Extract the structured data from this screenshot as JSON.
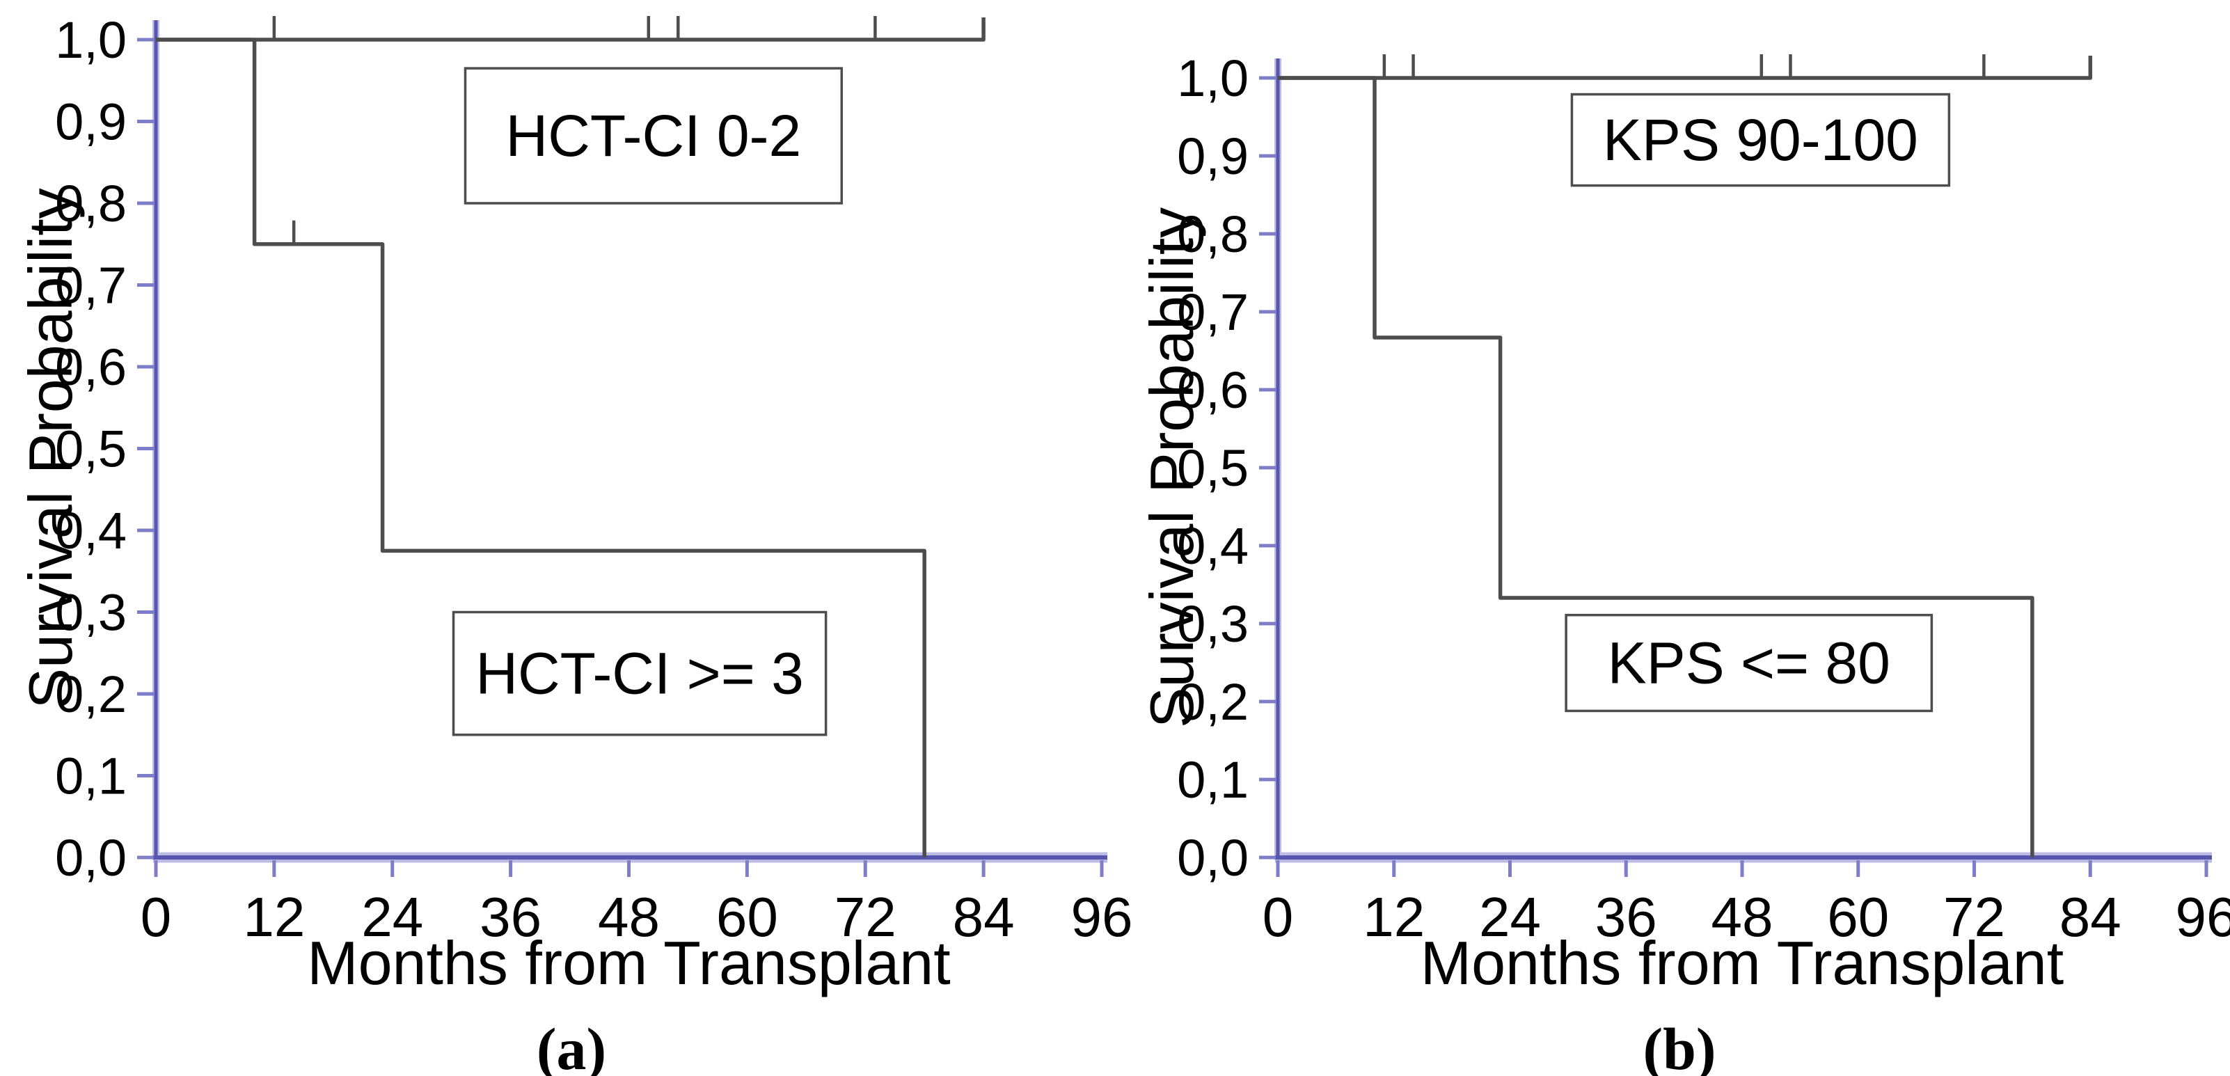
{
  "figure": {
    "background": "#ffffff",
    "description": "Two Kaplan-Meier overall survival plots, months from transplant"
  },
  "colors": {
    "axis": "#5656ae",
    "axis_halo": "#bcbce4",
    "tick": "#7d7dc9",
    "curve": "#4d4d4d",
    "legend_border": "#4d4d4d",
    "text": "#000000"
  },
  "chart_data": [
    {
      "type": "line",
      "subtype": "kaplan_meier_step",
      "panel_label": "(a)",
      "xlabel": "Months from Transplant",
      "ylabel": "Survival Probability",
      "xlim": [
        0,
        96
      ],
      "ylim": [
        0.0,
        1.0
      ],
      "grid": false,
      "decimal_separator": ",",
      "x_tick_values": [
        0,
        12,
        24,
        36,
        48,
        60,
        72,
        84,
        96
      ],
      "x_tick_labels": [
        "0",
        "12",
        "24",
        "36",
        "48",
        "60",
        "72",
        "84",
        "96"
      ],
      "y_tick_values": [
        1.0,
        0.9,
        0.8,
        0.7,
        0.6,
        0.5,
        0.4,
        0.3,
        0.2,
        0.1,
        0.0
      ],
      "y_tick_labels": [
        "1,0",
        "0,9",
        "0,8",
        "0,7",
        "0,6",
        "0,5",
        "0,4",
        "0,3",
        "0,2",
        "0,1",
        "0,0"
      ],
      "series": [
        {
          "name": "HCT-CI 0-2",
          "points": [
            [
              0,
              1.0
            ],
            [
              84,
              1.0
            ]
          ],
          "censor_marks": [
            [
              12,
              1.0
            ],
            [
              50,
              1.0
            ],
            [
              53,
              1.0
            ],
            [
              73,
              1.0
            ]
          ],
          "terminal_tick": [
            84,
            1.0
          ],
          "legend_box": {
            "label": "HCT-CI 0-2",
            "x_months": [
              31.4,
              69.6
            ],
            "y_survival": [
              0.8,
              0.965
            ]
          }
        },
        {
          "name": "HCT-CI >= 3",
          "points": [
            [
              0,
              1.0
            ],
            [
              10,
              1.0
            ],
            [
              10,
              0.75
            ],
            [
              23,
              0.75
            ],
            [
              23,
              0.375
            ],
            [
              78,
              0.375
            ],
            [
              78,
              0.0
            ]
          ],
          "censor_marks": [
            [
              14,
              0.75
            ]
          ],
          "terminal_tick": null,
          "legend_box": {
            "label": "HCT-CI >= 3",
            "x_months": [
              30.2,
              68.0
            ],
            "y_survival": [
              0.15,
              0.3
            ]
          }
        }
      ]
    },
    {
      "type": "line",
      "subtype": "kaplan_meier_step",
      "panel_label": "(b)",
      "xlabel": "Months from Transplant",
      "ylabel": "Survival Probability",
      "xlim": [
        0,
        96
      ],
      "ylim": [
        0.0,
        1.0
      ],
      "grid": false,
      "decimal_separator": ",",
      "x_tick_values": [
        0,
        12,
        24,
        36,
        48,
        60,
        72,
        84,
        96
      ],
      "x_tick_labels": [
        "0",
        "12",
        "24",
        "36",
        "48",
        "60",
        "72",
        "84",
        "96"
      ],
      "y_tick_values": [
        1.0,
        0.9,
        0.8,
        0.7,
        0.6,
        0.5,
        0.4,
        0.3,
        0.2,
        0.1,
        0.0
      ],
      "y_tick_labels": [
        "1,0",
        "0,9",
        "0,8",
        "0,7",
        "0,6",
        "0,5",
        "0,4",
        "0,3",
        "0,2",
        "0,1",
        "0,0"
      ],
      "series": [
        {
          "name": "KPS 90-100",
          "points": [
            [
              0,
              1.0
            ],
            [
              84,
              1.0
            ]
          ],
          "censor_marks": [
            [
              11,
              1.0
            ],
            [
              14,
              1.0
            ],
            [
              50,
              1.0
            ],
            [
              53,
              1.0
            ],
            [
              73,
              1.0
            ]
          ],
          "terminal_tick": [
            84,
            1.0
          ],
          "legend_box": {
            "label": "KPS 90-100",
            "x_months": [
              30.4,
              69.4
            ],
            "y_survival": [
              0.862,
              0.979
            ]
          }
        },
        {
          "name": "KPS <= 80",
          "points": [
            [
              0,
              1.0
            ],
            [
              10,
              1.0
            ],
            [
              10,
              0.667
            ],
            [
              23,
              0.667
            ],
            [
              23,
              0.333
            ],
            [
              78,
              0.333
            ],
            [
              78,
              0.0
            ]
          ],
          "censor_marks": [],
          "terminal_tick": null,
          "legend_box": {
            "label": "KPS <= 80",
            "x_months": [
              29.8,
              67.6
            ],
            "y_survival": [
              0.188,
              0.311
            ]
          }
        }
      ]
    }
  ]
}
